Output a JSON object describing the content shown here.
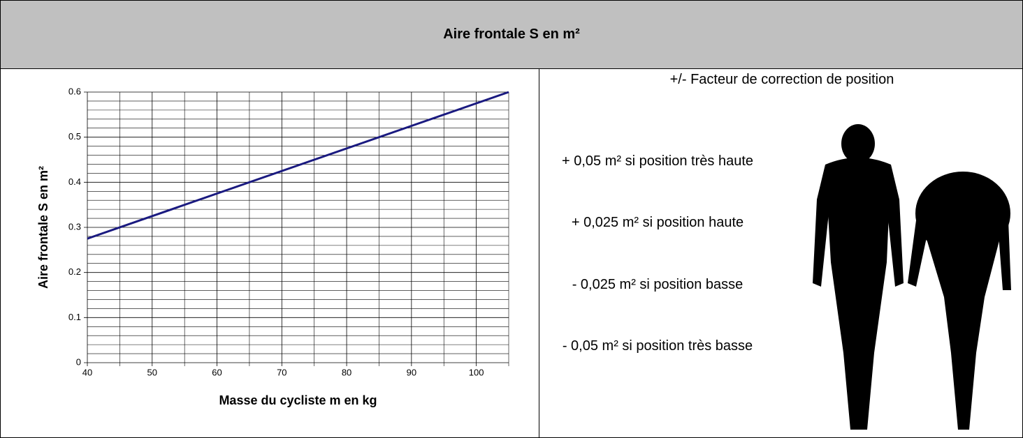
{
  "header": {
    "title": "Aire frontale S en m²"
  },
  "chart_data": {
    "type": "line",
    "x": [
      40,
      105
    ],
    "series": [
      {
        "color": "#1a1a80",
        "values": [
          0.275,
          0.6
        ]
      }
    ],
    "xlim": [
      40,
      105
    ],
    "ylim": [
      0,
      0.6
    ],
    "xticks": [
      40,
      50,
      60,
      70,
      80,
      90,
      100
    ],
    "yticks": [
      0,
      0.1,
      0.2,
      0.3,
      0.4,
      0.5,
      0.6
    ],
    "xminorticks": [
      45,
      55,
      65,
      75,
      85,
      95,
      105
    ],
    "yminorticks": [
      0.02,
      0.04,
      0.06,
      0.08,
      0.12,
      0.14,
      0.16,
      0.18,
      0.22,
      0.24,
      0.26,
      0.28,
      0.32,
      0.34,
      0.36,
      0.38,
      0.42,
      0.44,
      0.46,
      0.48,
      0.52,
      0.54,
      0.56,
      0.58
    ],
    "grid": true,
    "xlabel": "Masse du cycliste m en kg",
    "ylabel": "Aire frontale S en m²"
  },
  "corrections": {
    "title": "+/- Facteur de correction de position",
    "items": [
      "+ 0,05 m² si position très haute",
      "+ 0,025 m² si position haute",
      "- 0,025 m² si position basse",
      "- 0,05 m² si position très basse"
    ]
  }
}
